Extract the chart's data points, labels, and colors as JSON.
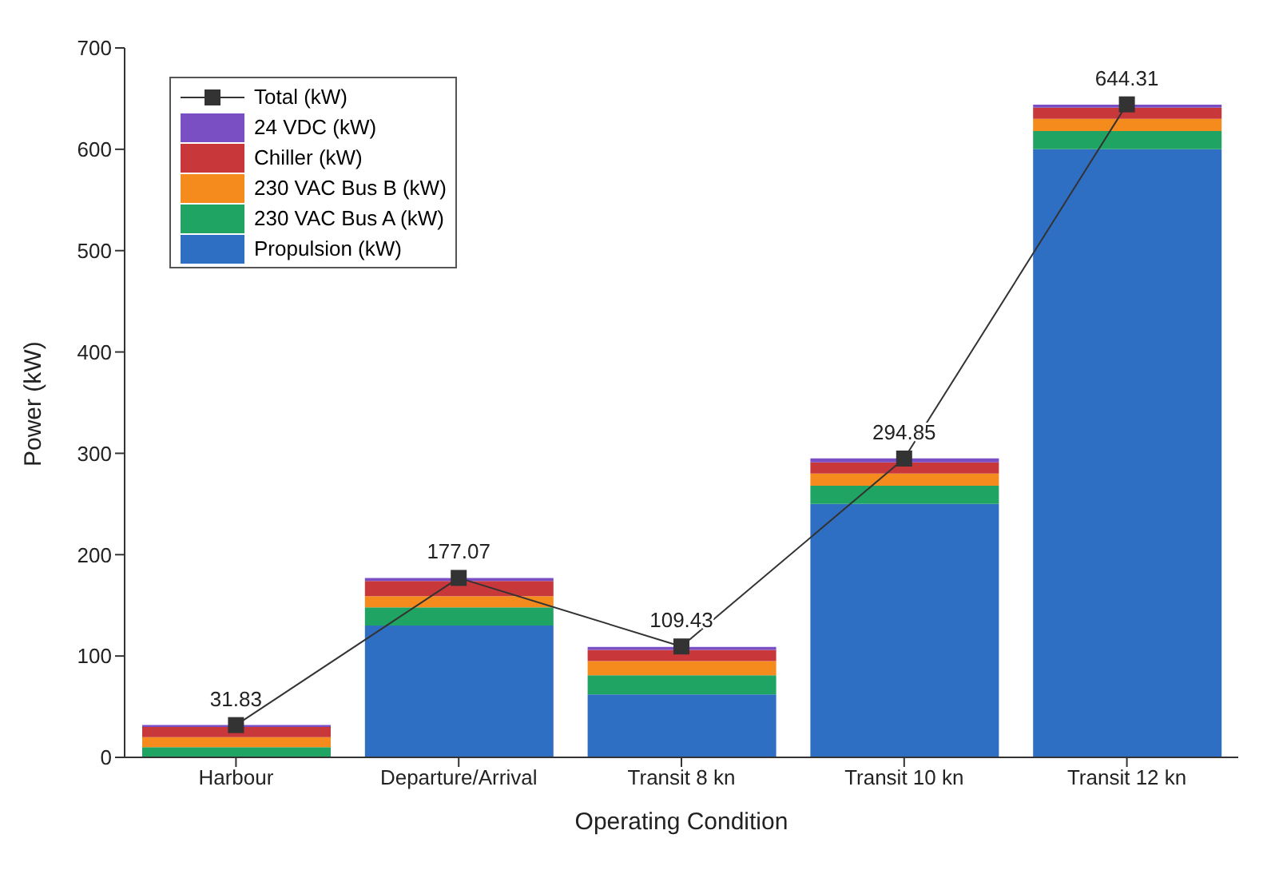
{
  "chart_data": {
    "type": "bar",
    "stacked": true,
    "xlabel": "Operating Condition",
    "ylabel": "Power (kW)",
    "categories": [
      "Harbour",
      "Departure/Arrival",
      "Transit 8 kn",
      "Transit 10 kn",
      "Transit 12 kn"
    ],
    "ylim": [
      0,
      700
    ],
    "yticks": [
      0,
      100,
      200,
      300,
      400,
      500,
      600,
      700
    ],
    "grid": false,
    "legend": "top left",
    "series": [
      {
        "name": "Propulsion (kW)",
        "color": "#2e6fc4",
        "values": [
          0,
          130,
          62,
          250,
          600
        ]
      },
      {
        "name": "230 VAC Bus A (kW)",
        "color": "#1fa463",
        "values": [
          10,
          18,
          19,
          18,
          18
        ]
      },
      {
        "name": "230 VAC Bus B (kW)",
        "color": "#f58b1c",
        "values": [
          10,
          11,
          14,
          12,
          12
        ]
      },
      {
        "name": "Chiller (kW)",
        "color": "#c8373a",
        "values": [
          10,
          15,
          11,
          11,
          11
        ]
      },
      {
        "name": "24 VDC (kW)",
        "color": "#7b4fc4",
        "values": [
          2,
          3,
          3,
          4,
          3
        ]
      },
      {
        "name": "Total (kW)",
        "type": "line",
        "color": "#333333",
        "marker": "square",
        "values": [
          31.83,
          177.07,
          109.43,
          294.85,
          644.31
        ],
        "value_labels": [
          "31.83",
          "177.07",
          "109.43",
          "294.85",
          "644.31"
        ]
      }
    ]
  }
}
